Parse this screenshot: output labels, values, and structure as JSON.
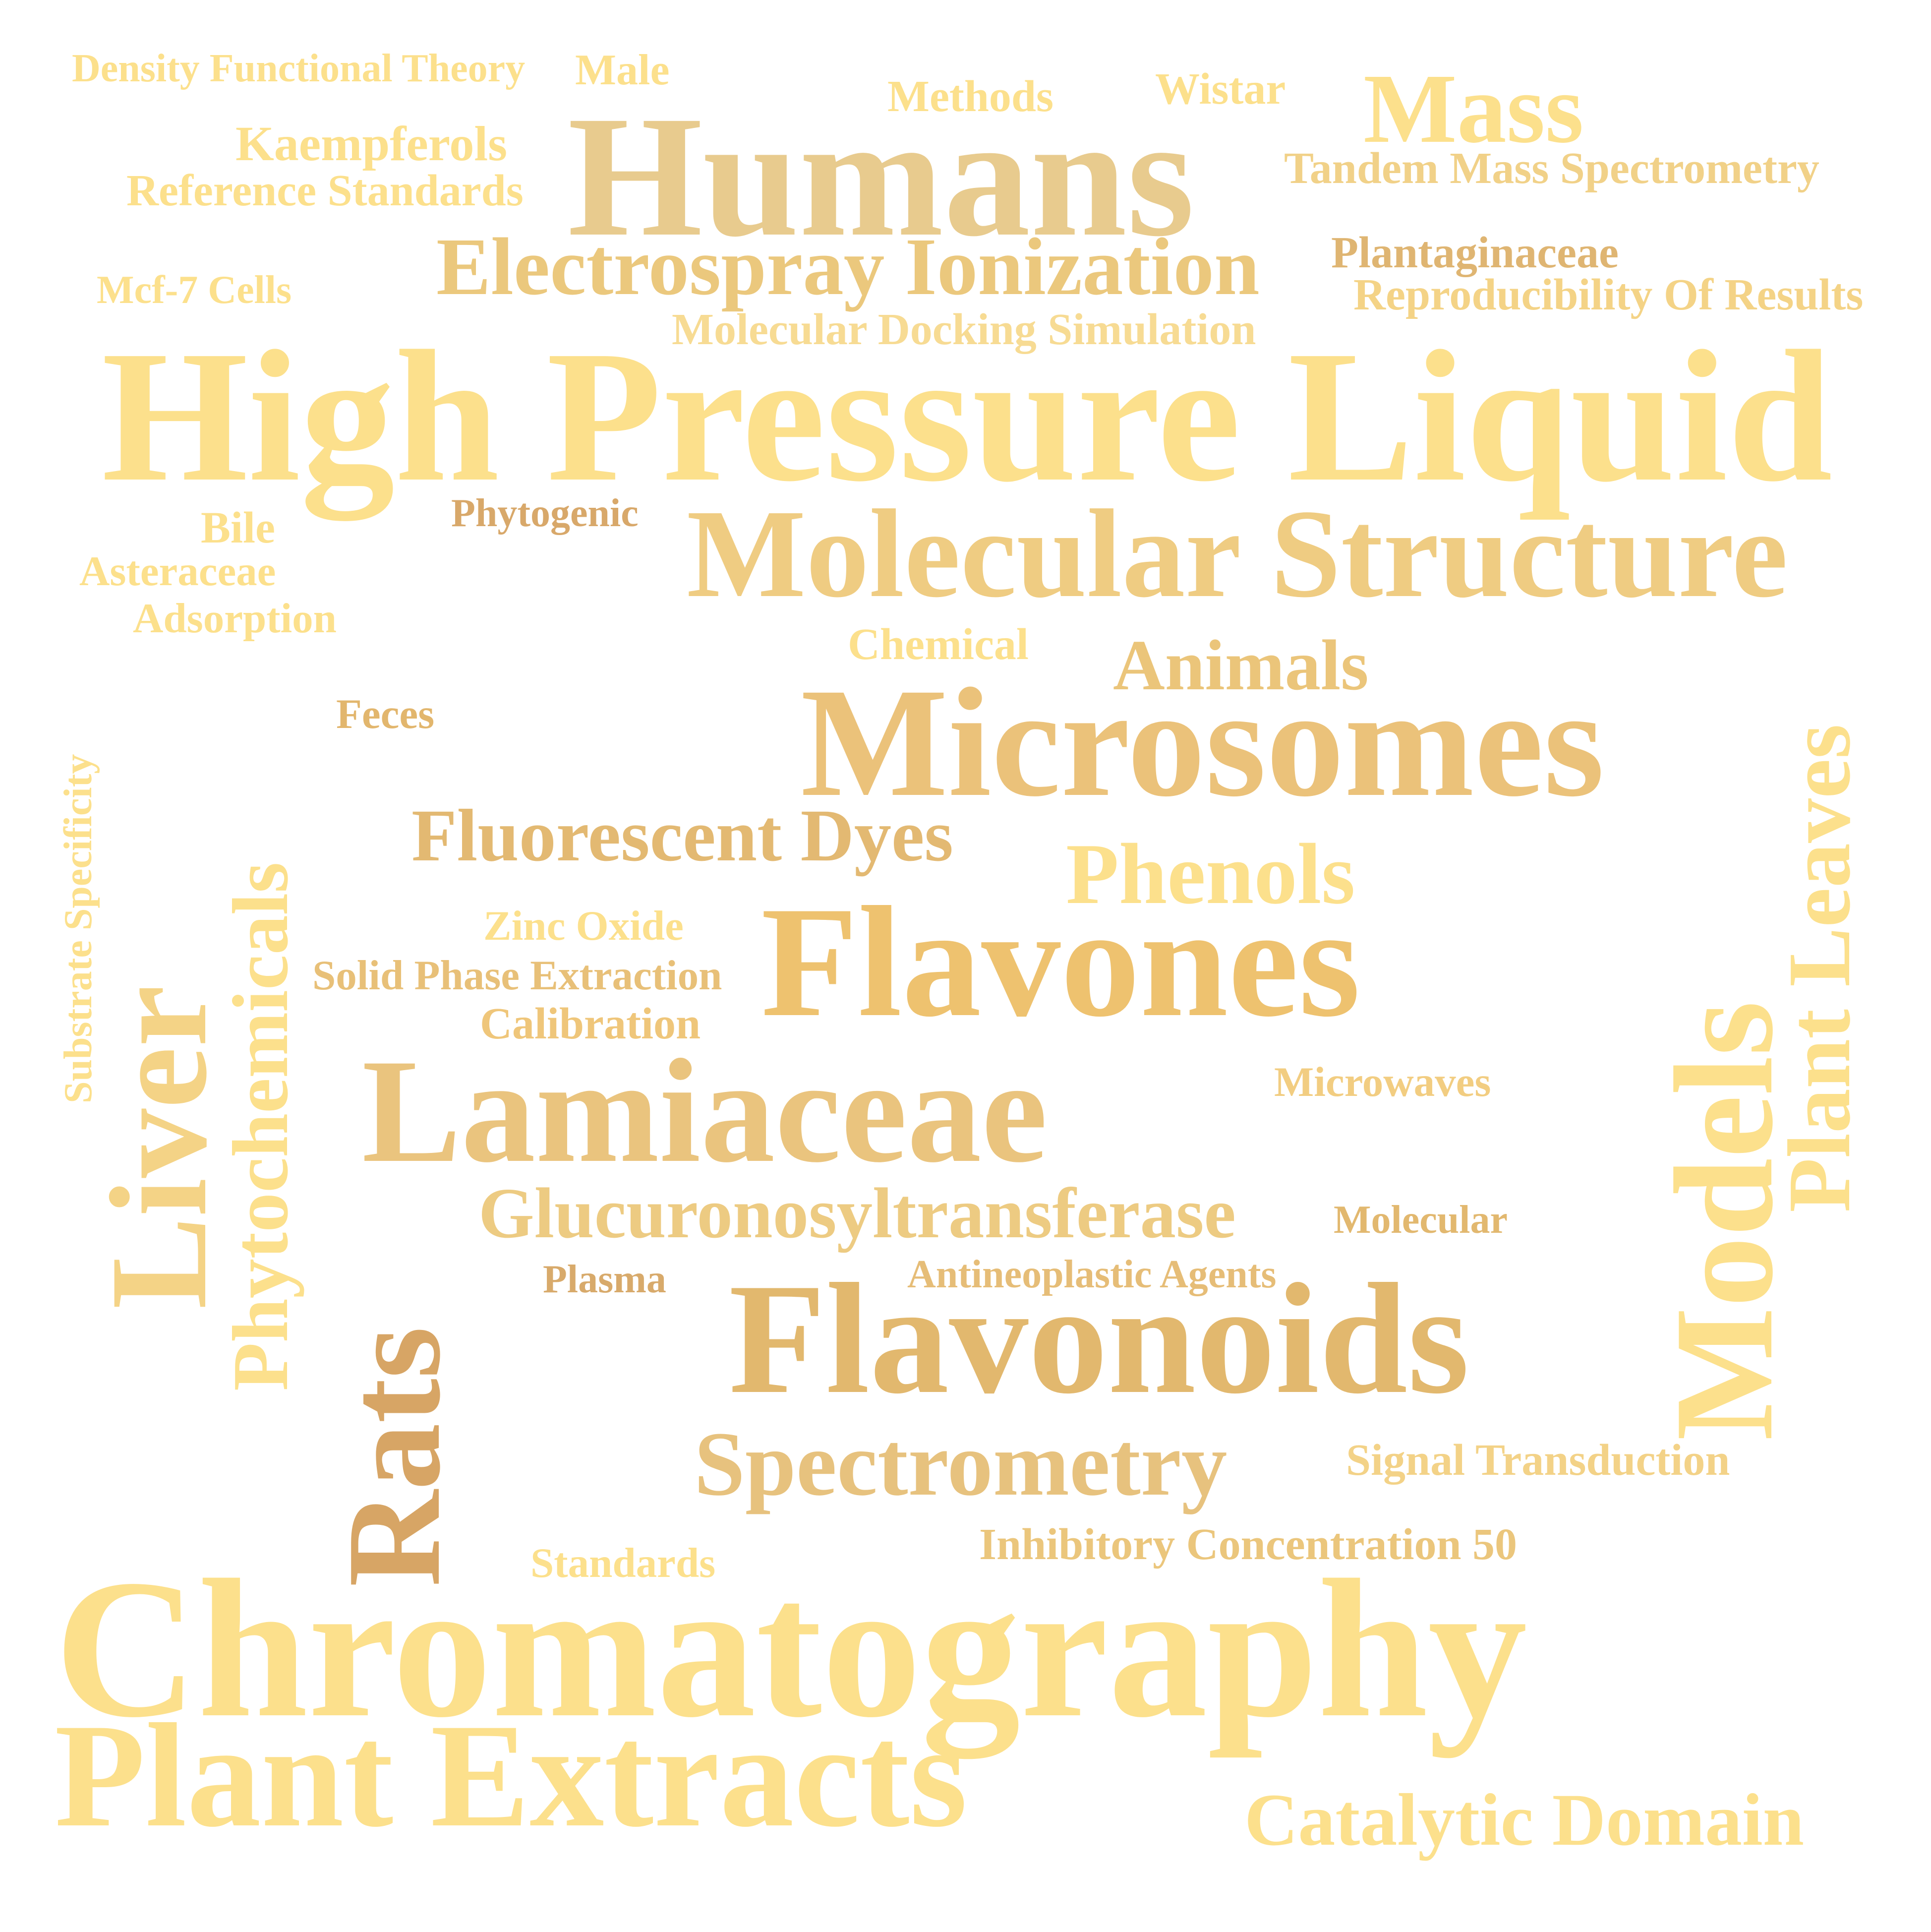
{
  "words": [
    {
      "id": "density-functional-theory",
      "text": "Density Functional Theory",
      "color": "#FCE08C"
    },
    {
      "id": "male",
      "text": "Male",
      "color": "#FCE08C"
    },
    {
      "id": "methods",
      "text": "Methods",
      "color": "#FCE08C"
    },
    {
      "id": "wistar",
      "text": "Wistar",
      "color": "#FCE08C"
    },
    {
      "id": "mass",
      "text": "Mass",
      "color": "#FCE08C"
    },
    {
      "id": "humans",
      "text": "Humans",
      "color": "#E8CB8E"
    },
    {
      "id": "kaempferols",
      "text": "Kaempferols",
      "color": "#FCE08C"
    },
    {
      "id": "reference-standards",
      "text": "Reference Standards",
      "color": "#FCE08C"
    },
    {
      "id": "tandem-mass-spectrometry",
      "text": "Tandem Mass Spectrometry",
      "color": "#F1D188"
    },
    {
      "id": "electrospray-ionization",
      "text": "Electrospray Ionization",
      "color": "#EBC87D"
    },
    {
      "id": "plantaginaceae",
      "text": "Plantaginaceae",
      "color": "#DFB572"
    },
    {
      "id": "reproducibility-of-results",
      "text": "Reproducibility Of Results",
      "color": "#F4D386"
    },
    {
      "id": "mcf-7-cells",
      "text": "Mcf-7 Cells",
      "color": "#FCE08C"
    },
    {
      "id": "molecular-docking-simulation",
      "text": "Molecular Docking Simulation",
      "color": "#F7DB93"
    },
    {
      "id": "high-pressure-liquid",
      "text": "High Pressure Liquid",
      "color": "#FCE08C"
    },
    {
      "id": "bile",
      "text": "Bile",
      "color": "#FCE08C"
    },
    {
      "id": "phytogenic",
      "text": "Phytogenic",
      "color": "#D8A86A"
    },
    {
      "id": "asteraceae",
      "text": "Asteraceae",
      "color": "#FCE08C"
    },
    {
      "id": "adsorption",
      "text": "Adsorption",
      "color": "#FCE08C"
    },
    {
      "id": "molecular-structure",
      "text": "Molecular Structure",
      "color": "#EFCC82"
    },
    {
      "id": "chemical",
      "text": "Chemical",
      "color": "#FCE08C"
    },
    {
      "id": "animals",
      "text": "Animals",
      "color": "#EBC57A"
    },
    {
      "id": "feces",
      "text": "Feces",
      "color": "#E2B66D"
    },
    {
      "id": "substrate-specificity",
      "text": "Substrate Specificity",
      "color": "#FCE08C"
    },
    {
      "id": "microsomes",
      "text": "Microsomes",
      "color": "#EBC27A"
    },
    {
      "id": "plant-leaves",
      "text": "Plant Leaves",
      "color": "#FCE08C"
    },
    {
      "id": "phytochemicals",
      "text": "Phytochemicals",
      "color": "#FCE08C"
    },
    {
      "id": "fluorescent-dyes",
      "text": "Fluorescent Dyes",
      "color": "#E3B972"
    },
    {
      "id": "phenols",
      "text": "Phenols",
      "color": "#FCE08C"
    },
    {
      "id": "zinc-oxide",
      "text": "Zinc Oxide",
      "color": "#FCE08C"
    },
    {
      "id": "solid-phase-extraction",
      "text": "Solid Phase Extraction",
      "color": "#E8C078"
    },
    {
      "id": "flavones",
      "text": "Flavones",
      "color": "#EEC26F"
    },
    {
      "id": "calibration",
      "text": "Calibration",
      "color": "#EFC67A"
    },
    {
      "id": "liver",
      "text": "Liver",
      "color": "#F4D386"
    },
    {
      "id": "models",
      "text": "Models",
      "color": "#FCE08C"
    },
    {
      "id": "microwaves",
      "text": "Microwaves",
      "color": "#F2CD81"
    },
    {
      "id": "lamiaceae",
      "text": "Lamiaceae",
      "color": "#EAC47E"
    },
    {
      "id": "glucuronosyltransferase",
      "text": "Glucuronosyltransferase",
      "color": "#EDCB82"
    },
    {
      "id": "molecular",
      "text": "Molecular",
      "color": "#E2B86F"
    },
    {
      "id": "rats",
      "text": "Rats",
      "color": "#D7A565"
    },
    {
      "id": "plasma",
      "text": "Plasma",
      "color": "#D8AA6B"
    },
    {
      "id": "antineoplastic-agents",
      "text": "Antineoplastic Agents",
      "color": "#E6BD77"
    },
    {
      "id": "flavonoids",
      "text": "Flavonoids",
      "color": "#E2B86E"
    },
    {
      "id": "spectrometry",
      "text": "Spectrometry",
      "color": "#E7C27E"
    },
    {
      "id": "signal-transduction",
      "text": "Signal Transduction",
      "color": "#F3D287"
    },
    {
      "id": "standards",
      "text": "Standards",
      "color": "#FCE08C"
    },
    {
      "id": "inhibitory-concentration-50",
      "text": "Inhibitory Concentration 50",
      "color": "#EBC67C"
    },
    {
      "id": "chromatography",
      "text": "Chromatography",
      "color": "#FCE08C"
    },
    {
      "id": "plant-extracts",
      "text": "Plant Extracts",
      "color": "#FCE08C"
    },
    {
      "id": "catalytic-domain",
      "text": "Catalytic Domain",
      "color": "#FCE08C"
    }
  ]
}
